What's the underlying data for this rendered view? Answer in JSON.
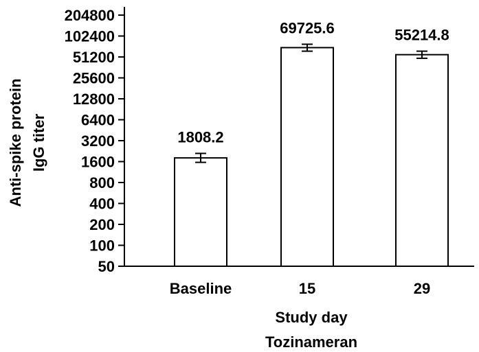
{
  "chart_data": {
    "type": "bar",
    "scale": "log2",
    "categories": [
      "Baseline",
      "15",
      "29"
    ],
    "values": [
      1808.2,
      69725.6,
      55214.8
    ],
    "error_low": [
      1560,
      62000,
      49000
    ],
    "error_high": [
      2100,
      78000,
      62000
    ],
    "data_labels": [
      "1808.2",
      "69725.6",
      "55214.8"
    ],
    "xlabel": "Study day",
    "xlabel2": "Tozinameran",
    "ylabel_line1": "Anti-spike protein",
    "ylabel_line2": "IgG titer",
    "yticks": [
      50,
      100,
      200,
      400,
      800,
      1600,
      3200,
      6400,
      12800,
      25600,
      51200,
      102400,
      204800
    ],
    "ytick_labels": [
      "50",
      "100",
      "200",
      "400",
      "800",
      "1600",
      "3200",
      "6400",
      "12800",
      "25600",
      "51200",
      "102400",
      "204800"
    ],
    "ylim": [
      50,
      204800
    ],
    "grid": false,
    "bar_fill": "#ffffff",
    "bar_stroke": "#000000"
  }
}
